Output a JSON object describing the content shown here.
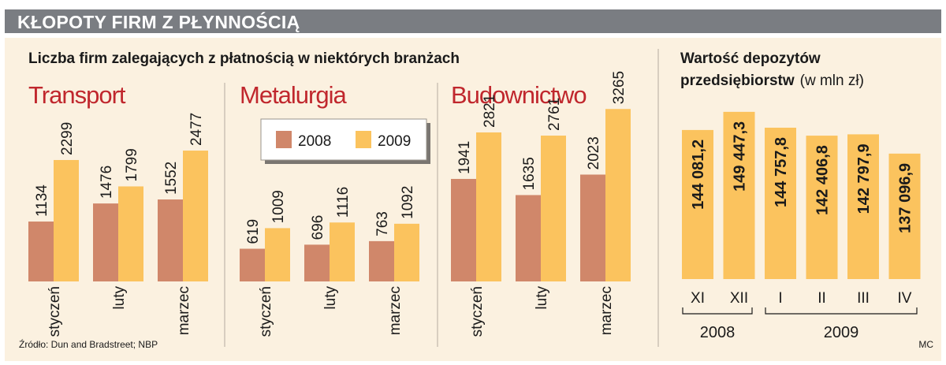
{
  "header": {
    "title": "KŁOPOTY FIRM Z PŁYNNOŚCIĄ"
  },
  "left_panel": {
    "subtitle": "Liczba firm zalegających z płatnością w niektórych branżach"
  },
  "right_panel": {
    "subtitle_bold_1": "Wartość depozytów",
    "subtitle_bold_2": "przedsiębiorstw",
    "subtitle_light": "(w mln zł)"
  },
  "legend": {
    "items": [
      "2008",
      "2009"
    ]
  },
  "source": "Źródło: Dun and Bradstreet; NBP",
  "credit": "MC",
  "colors": {
    "s2008": "#d0876a",
    "s2009": "#fbc35e",
    "header": "#7a7d82",
    "panel": "#fbf1e0",
    "section": "#c0272d"
  },
  "chart_data": [
    {
      "type": "bar",
      "title": "Transport",
      "categories": [
        "styczeń",
        "luty",
        "marzec"
      ],
      "series": [
        {
          "name": "2008",
          "values": [
            1134,
            1476,
            1552
          ]
        },
        {
          "name": "2009",
          "values": [
            2299,
            1799,
            2477
          ]
        }
      ]
    },
    {
      "type": "bar",
      "title": "Metalurgia",
      "categories": [
        "styczeń",
        "luty",
        "marzec"
      ],
      "series": [
        {
          "name": "2008",
          "values": [
            619,
            696,
            763
          ]
        },
        {
          "name": "2009",
          "values": [
            1009,
            1116,
            1092
          ]
        }
      ]
    },
    {
      "type": "bar",
      "title": "Budownictwo",
      "categories": [
        "styczeń",
        "luty",
        "marzec"
      ],
      "series": [
        {
          "name": "2008",
          "values": [
            1941,
            1635,
            2023
          ]
        },
        {
          "name": "2009",
          "values": [
            2821,
            2761,
            3265
          ]
        }
      ]
    },
    {
      "type": "bar",
      "title": "",
      "categories": [
        "XI",
        "XII",
        "I",
        "II",
        "III",
        "IV"
      ],
      "labels": [
        "144 081,2",
        "149 447,3",
        "144 757,8",
        "142 406,8",
        "142 797,9",
        "137 096,9"
      ],
      "values": [
        144081.2,
        149447.3,
        144757.8,
        142406.8,
        142797.9,
        137096.9
      ],
      "year_groups": [
        {
          "label": "2008",
          "categories": [
            "XI",
            "XII"
          ]
        },
        {
          "label": "2009",
          "categories": [
            "I",
            "II",
            "III",
            "IV"
          ]
        }
      ]
    }
  ]
}
